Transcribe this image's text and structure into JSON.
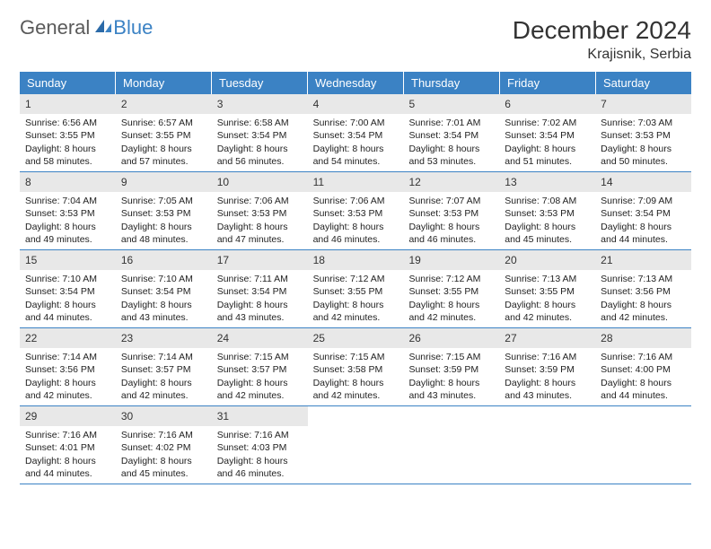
{
  "logo": {
    "word1": "General",
    "word2": "Blue"
  },
  "title": "December 2024",
  "location": "Krajisnik, Serbia",
  "colors": {
    "header_bg": "#3b82c4",
    "header_text": "#ffffff",
    "daynum_bg": "#e8e8e8",
    "row_border": "#3b82c4",
    "body_text": "#222222",
    "title_text": "#333333"
  },
  "day_headers": [
    "Sunday",
    "Monday",
    "Tuesday",
    "Wednesday",
    "Thursday",
    "Friday",
    "Saturday"
  ],
  "weeks": [
    [
      {
        "num": "1",
        "sunrise": "Sunrise: 6:56 AM",
        "sunset": "Sunset: 3:55 PM",
        "day1": "Daylight: 8 hours",
        "day2": "and 58 minutes."
      },
      {
        "num": "2",
        "sunrise": "Sunrise: 6:57 AM",
        "sunset": "Sunset: 3:55 PM",
        "day1": "Daylight: 8 hours",
        "day2": "and 57 minutes."
      },
      {
        "num": "3",
        "sunrise": "Sunrise: 6:58 AM",
        "sunset": "Sunset: 3:54 PM",
        "day1": "Daylight: 8 hours",
        "day2": "and 56 minutes."
      },
      {
        "num": "4",
        "sunrise": "Sunrise: 7:00 AM",
        "sunset": "Sunset: 3:54 PM",
        "day1": "Daylight: 8 hours",
        "day2": "and 54 minutes."
      },
      {
        "num": "5",
        "sunrise": "Sunrise: 7:01 AM",
        "sunset": "Sunset: 3:54 PM",
        "day1": "Daylight: 8 hours",
        "day2": "and 53 minutes."
      },
      {
        "num": "6",
        "sunrise": "Sunrise: 7:02 AM",
        "sunset": "Sunset: 3:54 PM",
        "day1": "Daylight: 8 hours",
        "day2": "and 51 minutes."
      },
      {
        "num": "7",
        "sunrise": "Sunrise: 7:03 AM",
        "sunset": "Sunset: 3:53 PM",
        "day1": "Daylight: 8 hours",
        "day2": "and 50 minutes."
      }
    ],
    [
      {
        "num": "8",
        "sunrise": "Sunrise: 7:04 AM",
        "sunset": "Sunset: 3:53 PM",
        "day1": "Daylight: 8 hours",
        "day2": "and 49 minutes."
      },
      {
        "num": "9",
        "sunrise": "Sunrise: 7:05 AM",
        "sunset": "Sunset: 3:53 PM",
        "day1": "Daylight: 8 hours",
        "day2": "and 48 minutes."
      },
      {
        "num": "10",
        "sunrise": "Sunrise: 7:06 AM",
        "sunset": "Sunset: 3:53 PM",
        "day1": "Daylight: 8 hours",
        "day2": "and 47 minutes."
      },
      {
        "num": "11",
        "sunrise": "Sunrise: 7:06 AM",
        "sunset": "Sunset: 3:53 PM",
        "day1": "Daylight: 8 hours",
        "day2": "and 46 minutes."
      },
      {
        "num": "12",
        "sunrise": "Sunrise: 7:07 AM",
        "sunset": "Sunset: 3:53 PM",
        "day1": "Daylight: 8 hours",
        "day2": "and 46 minutes."
      },
      {
        "num": "13",
        "sunrise": "Sunrise: 7:08 AM",
        "sunset": "Sunset: 3:53 PM",
        "day1": "Daylight: 8 hours",
        "day2": "and 45 minutes."
      },
      {
        "num": "14",
        "sunrise": "Sunrise: 7:09 AM",
        "sunset": "Sunset: 3:54 PM",
        "day1": "Daylight: 8 hours",
        "day2": "and 44 minutes."
      }
    ],
    [
      {
        "num": "15",
        "sunrise": "Sunrise: 7:10 AM",
        "sunset": "Sunset: 3:54 PM",
        "day1": "Daylight: 8 hours",
        "day2": "and 44 minutes."
      },
      {
        "num": "16",
        "sunrise": "Sunrise: 7:10 AM",
        "sunset": "Sunset: 3:54 PM",
        "day1": "Daylight: 8 hours",
        "day2": "and 43 minutes."
      },
      {
        "num": "17",
        "sunrise": "Sunrise: 7:11 AM",
        "sunset": "Sunset: 3:54 PM",
        "day1": "Daylight: 8 hours",
        "day2": "and 43 minutes."
      },
      {
        "num": "18",
        "sunrise": "Sunrise: 7:12 AM",
        "sunset": "Sunset: 3:55 PM",
        "day1": "Daylight: 8 hours",
        "day2": "and 42 minutes."
      },
      {
        "num": "19",
        "sunrise": "Sunrise: 7:12 AM",
        "sunset": "Sunset: 3:55 PM",
        "day1": "Daylight: 8 hours",
        "day2": "and 42 minutes."
      },
      {
        "num": "20",
        "sunrise": "Sunrise: 7:13 AM",
        "sunset": "Sunset: 3:55 PM",
        "day1": "Daylight: 8 hours",
        "day2": "and 42 minutes."
      },
      {
        "num": "21",
        "sunrise": "Sunrise: 7:13 AM",
        "sunset": "Sunset: 3:56 PM",
        "day1": "Daylight: 8 hours",
        "day2": "and 42 minutes."
      }
    ],
    [
      {
        "num": "22",
        "sunrise": "Sunrise: 7:14 AM",
        "sunset": "Sunset: 3:56 PM",
        "day1": "Daylight: 8 hours",
        "day2": "and 42 minutes."
      },
      {
        "num": "23",
        "sunrise": "Sunrise: 7:14 AM",
        "sunset": "Sunset: 3:57 PM",
        "day1": "Daylight: 8 hours",
        "day2": "and 42 minutes."
      },
      {
        "num": "24",
        "sunrise": "Sunrise: 7:15 AM",
        "sunset": "Sunset: 3:57 PM",
        "day1": "Daylight: 8 hours",
        "day2": "and 42 minutes."
      },
      {
        "num": "25",
        "sunrise": "Sunrise: 7:15 AM",
        "sunset": "Sunset: 3:58 PM",
        "day1": "Daylight: 8 hours",
        "day2": "and 42 minutes."
      },
      {
        "num": "26",
        "sunrise": "Sunrise: 7:15 AM",
        "sunset": "Sunset: 3:59 PM",
        "day1": "Daylight: 8 hours",
        "day2": "and 43 minutes."
      },
      {
        "num": "27",
        "sunrise": "Sunrise: 7:16 AM",
        "sunset": "Sunset: 3:59 PM",
        "day1": "Daylight: 8 hours",
        "day2": "and 43 minutes."
      },
      {
        "num": "28",
        "sunrise": "Sunrise: 7:16 AM",
        "sunset": "Sunset: 4:00 PM",
        "day1": "Daylight: 8 hours",
        "day2": "and 44 minutes."
      }
    ],
    [
      {
        "num": "29",
        "sunrise": "Sunrise: 7:16 AM",
        "sunset": "Sunset: 4:01 PM",
        "day1": "Daylight: 8 hours",
        "day2": "and 44 minutes."
      },
      {
        "num": "30",
        "sunrise": "Sunrise: 7:16 AM",
        "sunset": "Sunset: 4:02 PM",
        "day1": "Daylight: 8 hours",
        "day2": "and 45 minutes."
      },
      {
        "num": "31",
        "sunrise": "Sunrise: 7:16 AM",
        "sunset": "Sunset: 4:03 PM",
        "day1": "Daylight: 8 hours",
        "day2": "and 46 minutes."
      },
      {
        "empty": true
      },
      {
        "empty": true
      },
      {
        "empty": true
      },
      {
        "empty": true
      }
    ]
  ]
}
